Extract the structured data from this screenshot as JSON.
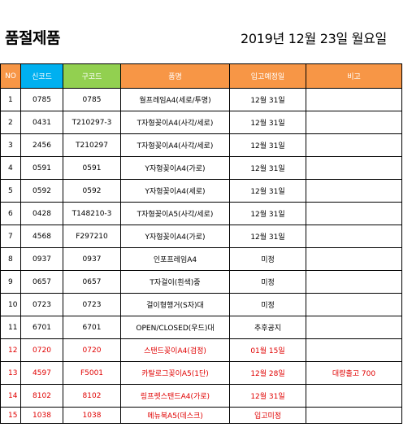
{
  "title": "품절제품",
  "date": "2019년 12월 23일 월요일",
  "columns": [
    {
      "label": "NO",
      "bg": "#f79646"
    },
    {
      "label": "신코드",
      "bg": "#00b0f0"
    },
    {
      "label": "구코드",
      "bg": "#92d050"
    },
    {
      "label": "품명",
      "bg": "#f79646"
    },
    {
      "label": "입고예정일",
      "bg": "#f79646"
    },
    {
      "label": "비고",
      "bg": "#f79646"
    }
  ],
  "rows": [
    {
      "no": "1",
      "new_code": "0785",
      "old_code": "0785",
      "name": "월프레임A4(세로/투명)",
      "date": "12월 31일",
      "note": "",
      "red": false
    },
    {
      "no": "2",
      "new_code": "0431",
      "old_code": "T210297-3",
      "name": "T자형꽂이A4(사각/세로)",
      "date": "12월 31일",
      "note": "",
      "red": false
    },
    {
      "no": "3",
      "new_code": "2456",
      "old_code": "T210297",
      "name": "T자형꽂이A4(사각/세로)",
      "date": "12월 31일",
      "note": "",
      "red": false
    },
    {
      "no": "4",
      "new_code": "0591",
      "old_code": "0591",
      "name": "Y자형꽂이A4(가로)",
      "date": "12월 31일",
      "note": "",
      "red": false
    },
    {
      "no": "5",
      "new_code": "0592",
      "old_code": "0592",
      "name": "Y자형꽂이A4(세로)",
      "date": "12월 31일",
      "note": "",
      "red": false
    },
    {
      "no": "6",
      "new_code": "0428",
      "old_code": "T148210-3",
      "name": "T자형꽂이A5(사각/세로)",
      "date": "12월 31일",
      "note": "",
      "red": false
    },
    {
      "no": "7",
      "new_code": "4568",
      "old_code": "F297210",
      "name": "Y자형꽂이A4(가로)",
      "date": "12월 31일",
      "note": "",
      "red": false
    },
    {
      "no": "8",
      "new_code": "0937",
      "old_code": "0937",
      "name": "인포프레임A4",
      "date": "미정",
      "note": "",
      "red": false
    },
    {
      "no": "9",
      "new_code": "0657",
      "old_code": "0657",
      "name": "T자걸이(흰색)중",
      "date": "미정",
      "note": "",
      "red": false
    },
    {
      "no": "10",
      "new_code": "0723",
      "old_code": "0723",
      "name": "걸이형행거(S자)대",
      "date": "미정",
      "note": "",
      "red": false
    },
    {
      "no": "11",
      "new_code": "6701",
      "old_code": "6701",
      "name": "OPEN/CLOSED(우드)대",
      "date": "추후공지",
      "note": "",
      "red": false
    },
    {
      "no": "12",
      "new_code": "0720",
      "old_code": "0720",
      "name": "스탠드꽂이A4(검정)",
      "date": "01월 15일",
      "note": "",
      "red": true
    },
    {
      "no": "13",
      "new_code": "4597",
      "old_code": "F5001",
      "name": "카탈로그꽂이A5(1단)",
      "date": "12월 28일",
      "note": "대량출고 700",
      "red": true
    },
    {
      "no": "14",
      "new_code": "8102",
      "old_code": "8102",
      "name": "링프렛스탠드A4(가로)",
      "date": "12월 31일",
      "note": "",
      "red": true
    },
    {
      "no": "15",
      "new_code": "1038",
      "old_code": "1038",
      "name": "메뉴북A5(데스크)",
      "date": "입고미정",
      "note": "",
      "red": true
    }
  ]
}
